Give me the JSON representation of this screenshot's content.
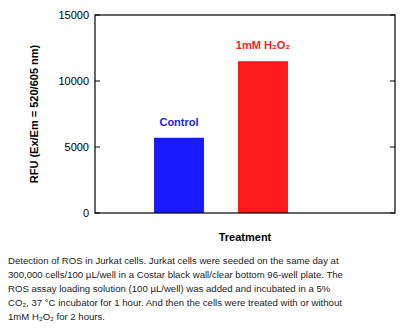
{
  "chart_data": {
    "type": "bar",
    "categories": [
      "Control",
      "1mM H₂O₂"
    ],
    "values": [
      5700,
      11500
    ],
    "colors": [
      "#1a1aff",
      "#ff1a1a"
    ],
    "ylim": [
      0,
      15000
    ],
    "yticks": [
      0,
      5000,
      10000,
      15000
    ],
    "xlabel": "Treatment",
    "ylabel": "RFU (Ex/Em = 520/605 nm)",
    "tick_labels": "y",
    "grid": false,
    "caption": [
      "Detection of ROS in Jurkat cells. Jurkat cells were seeded on the same day at",
      "300,000 cells/100 µL/well in a Costar black wall/clear bottom 96-well plate. The",
      "ROS assay loading solution (100 µL/well) was added and incubated in a 5%",
      "CO₂, 37 °C incubator for 1 hour. And then the cells were treated with or without",
      "1mM H₂O₂ for 2 hours."
    ]
  }
}
